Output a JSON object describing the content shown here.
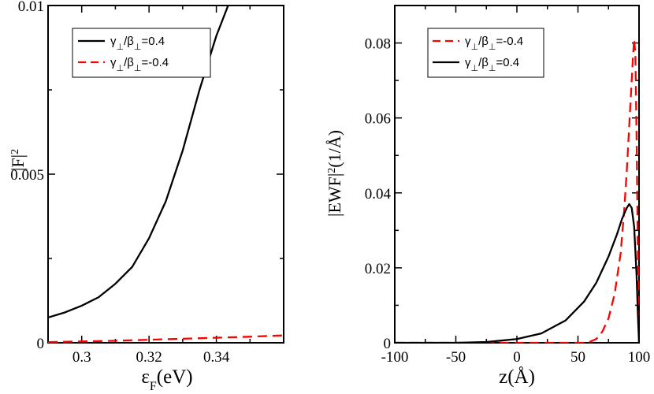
{
  "chart_data": [
    {
      "type": "line",
      "title": "",
      "xlabel_main": "ε",
      "xlabel_sub": "F",
      "xlabel_tail": "(eV)",
      "ylabel_main": "|F|",
      "ylabel_sup": "2",
      "xlim": [
        0.29,
        0.36
      ],
      "ylim": [
        0,
        0.01
      ],
      "x_ticks": [
        0.3,
        0.32,
        0.34
      ],
      "x_tick_labels": [
        "0.3",
        "0.32",
        "0.34"
      ],
      "y_ticks": [
        0,
        0.005,
        0.01
      ],
      "y_tick_labels": [
        "0",
        "0.005",
        "0.01"
      ],
      "legend_position": "top-right",
      "series": [
        {
          "name_main": "γ",
          "name_mid": "/β",
          "name_tail": "=0.4",
          "color": "#000000",
          "dash": "",
          "x": [
            0.29,
            0.295,
            0.3,
            0.305,
            0.31,
            0.315,
            0.32,
            0.325,
            0.33,
            0.335,
            0.34,
            0.3435
          ],
          "y": [
            0.00075,
            0.0009,
            0.0011,
            0.00135,
            0.00175,
            0.00225,
            0.0031,
            0.0042,
            0.0057,
            0.0075,
            0.0091,
            0.01
          ]
        },
        {
          "name_main": "γ",
          "name_mid": "/β",
          "name_tail": "=-0.4",
          "color": "#ff0000",
          "dash": "12,7",
          "x": [
            0.29,
            0.3,
            0.31,
            0.32,
            0.33,
            0.34,
            0.35,
            0.36
          ],
          "y": [
            2e-05,
            4e-05,
            6e-05,
            9e-05,
            0.00012,
            0.00015,
            0.00018,
            0.00022
          ]
        }
      ]
    },
    {
      "type": "line",
      "title": "",
      "xlabel_main": "z(",
      "xlabel_unit": "Å",
      "xlabel_tail": ")",
      "ylabel_main": "|EWF|",
      "ylabel_sup": "2",
      "ylabel_tail": "(1/",
      "ylabel_unit": "Å",
      "ylabel_close": ")",
      "xlim": [
        -100,
        100
      ],
      "ylim": [
        0,
        0.09
      ],
      "x_ticks": [
        -100,
        -50,
        0,
        50,
        100
      ],
      "x_tick_labels": [
        "-100",
        "-50",
        "0",
        "50",
        "100"
      ],
      "y_ticks": [
        0,
        0.02,
        0.04,
        0.06,
        0.08
      ],
      "y_tick_labels": [
        "0",
        "0.02",
        "0.04",
        "0.06",
        "0.08"
      ],
      "legend_position": "top-right",
      "series": [
        {
          "name_main": "γ",
          "name_mid": "/β",
          "name_tail": "=-0.4",
          "color": "#ff0000",
          "dash": "12,7",
          "x": [
            -100,
            55,
            60,
            65,
            70,
            75,
            80,
            85,
            88,
            90,
            92,
            94,
            95,
            96,
            97,
            98,
            99,
            100
          ],
          "y": [
            0,
            0,
            0.0003,
            0.001,
            0.003,
            0.0065,
            0.013,
            0.024,
            0.036,
            0.046,
            0.058,
            0.07,
            0.076,
            0.081,
            0.077,
            0.055,
            0.025,
            0
          ]
        },
        {
          "name_main": "γ",
          "name_mid": "/β",
          "name_tail": "=0.4",
          "color": "#000000",
          "dash": "",
          "x": [
            -100,
            -50,
            -25,
            0,
            20,
            40,
            55,
            65,
            75,
            82,
            86,
            90,
            92,
            94,
            96,
            98,
            99,
            100
          ],
          "y": [
            0,
            0,
            0.0002,
            0.001,
            0.0025,
            0.006,
            0.011,
            0.016,
            0.023,
            0.029,
            0.033,
            0.036,
            0.037,
            0.036,
            0.031,
            0.018,
            0.008,
            0
          ]
        }
      ]
    }
  ]
}
